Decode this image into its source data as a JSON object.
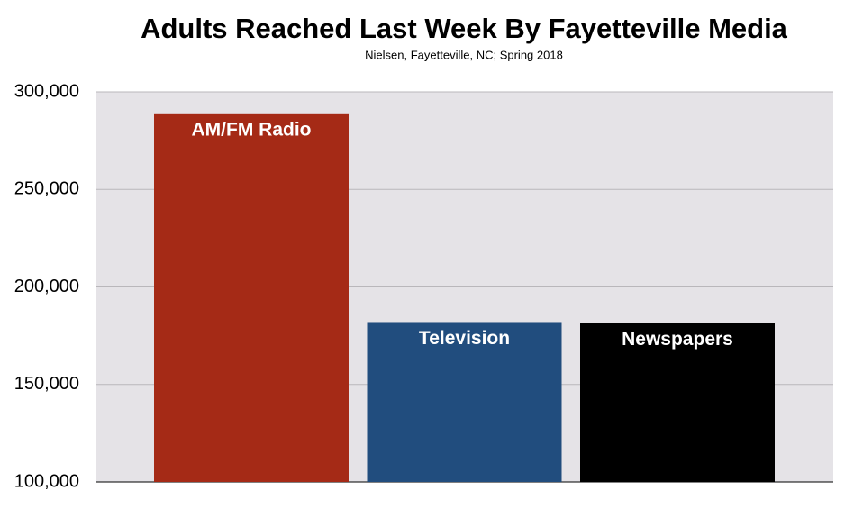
{
  "chart_data": {
    "type": "bar",
    "title": "Adults Reached Last Week By Fayetteville Media",
    "subtitle": "Nielsen, Fayetteville, NC; Spring 2018",
    "categories": [
      "AM/FM Radio",
      "Television",
      "Newspapers"
    ],
    "values": [
      289000,
      182000,
      181500
    ],
    "colors": [
      "#a52a16",
      "#214d7e",
      "#000000"
    ],
    "ylim": [
      100000,
      300000
    ],
    "yticks": [
      {
        "value": 100000,
        "label": "100,000"
      },
      {
        "value": 150000,
        "label": "150,000"
      },
      {
        "value": 200000,
        "label": "200,000"
      },
      {
        "value": 250000,
        "label": "250,000"
      },
      {
        "value": 300000,
        "label": "300,000"
      }
    ],
    "grid": true
  }
}
